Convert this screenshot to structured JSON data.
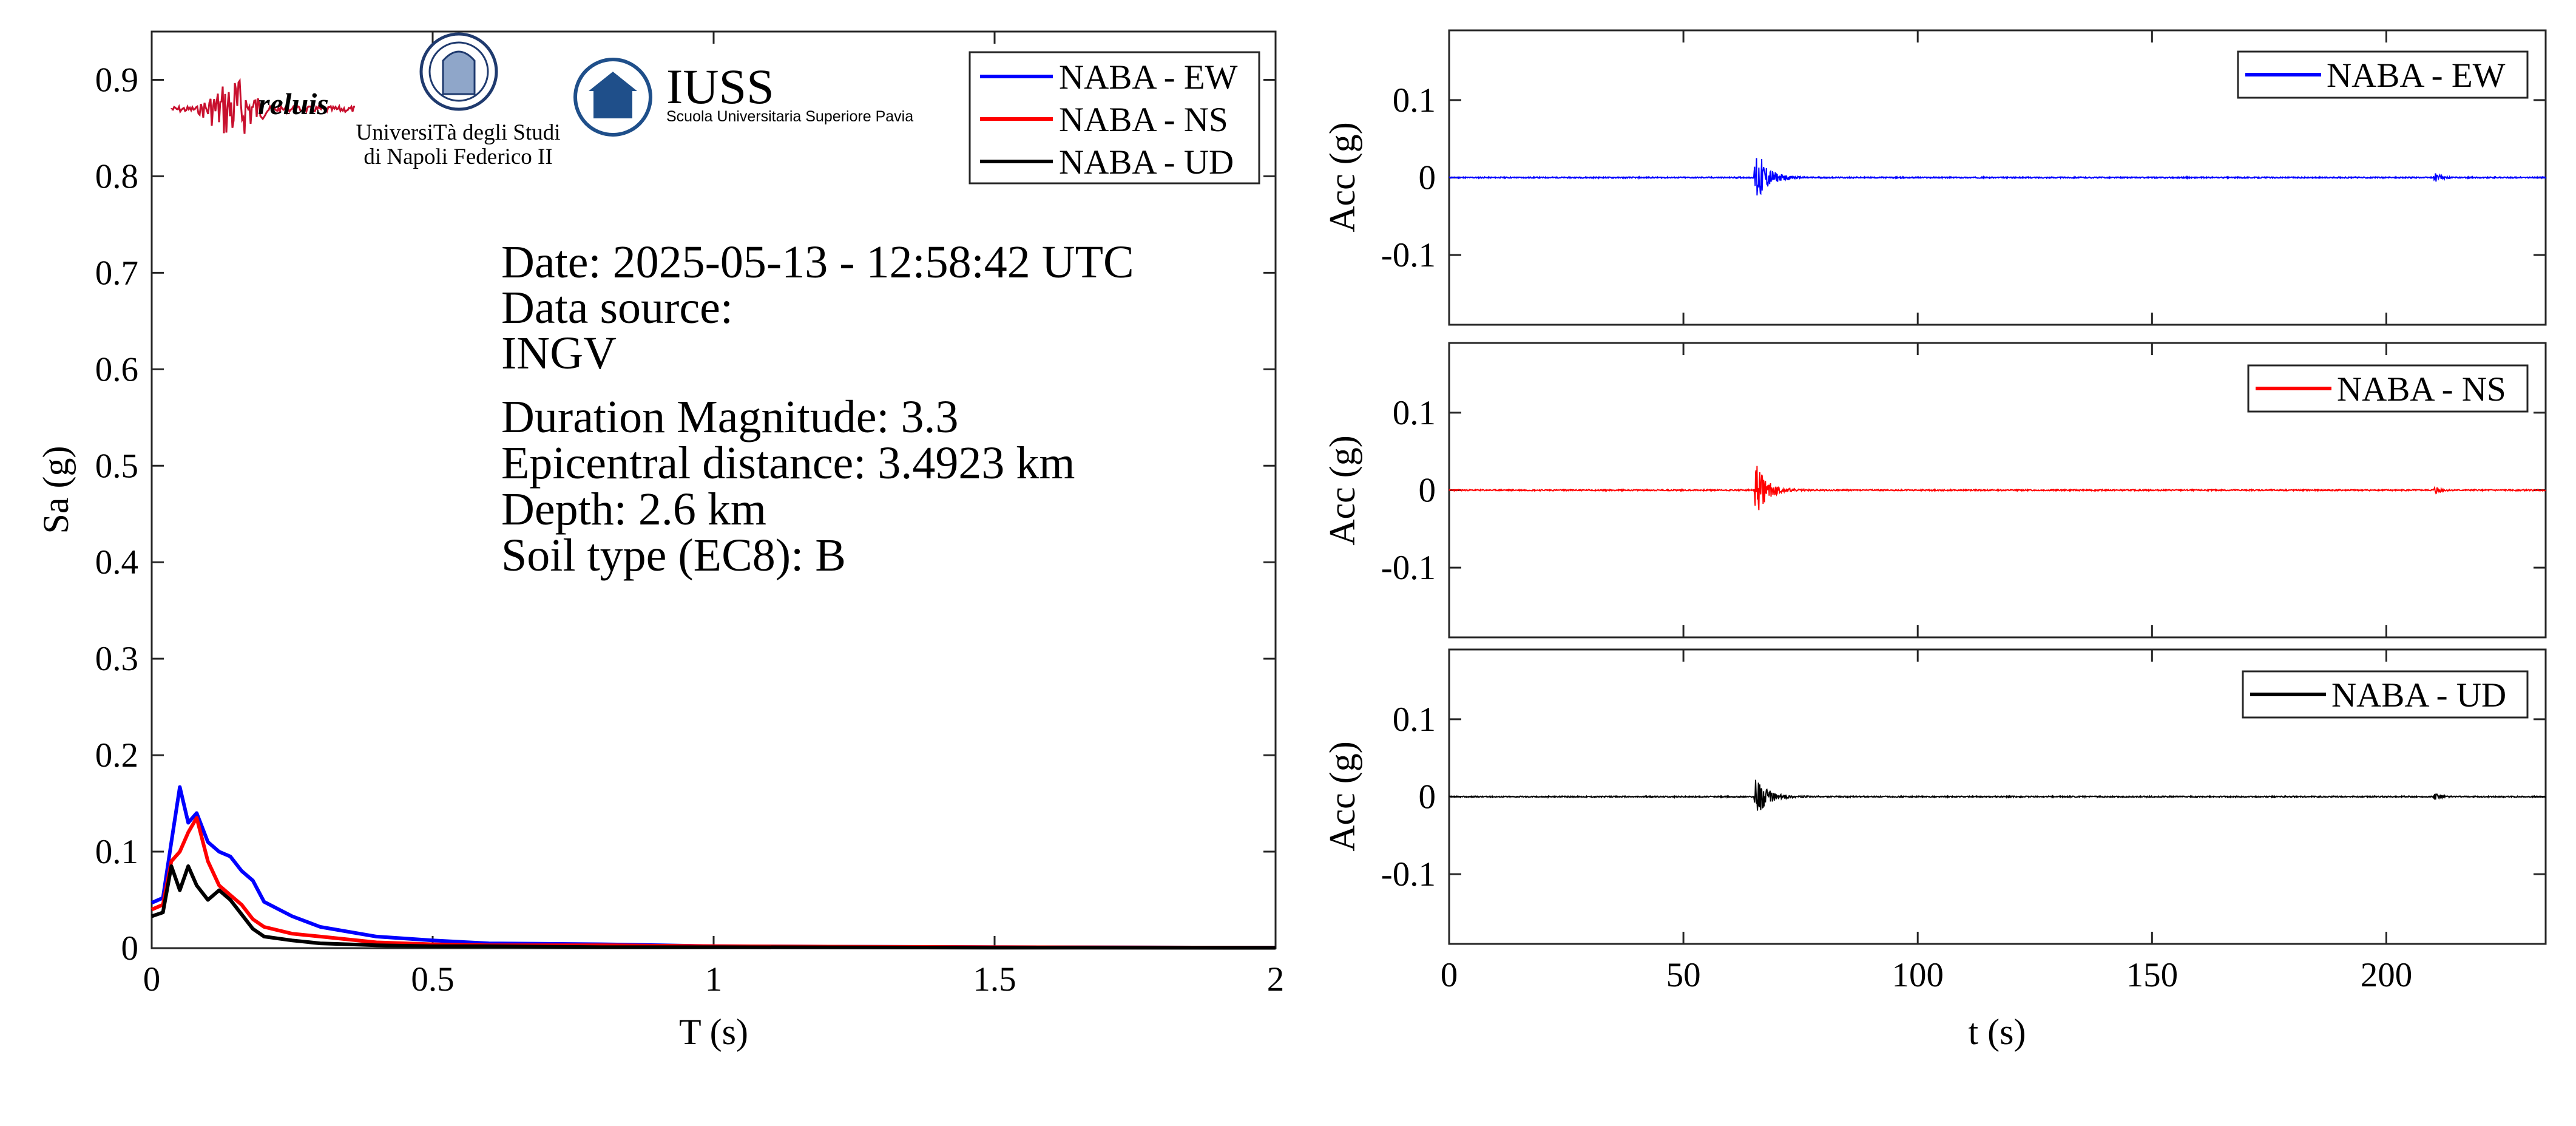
{
  "colors": {
    "EW": "#0000ff",
    "NS": "#ff0000",
    "UD": "#000000"
  },
  "logos": [
    {
      "name": "reluis",
      "text": "reluis"
    },
    {
      "name": "unina",
      "line1": "UniversiTà degli Studi",
      "line2": "di Napoli Federico II"
    },
    {
      "name": "iuss",
      "title": "IUSS",
      "subtitle": "Scuola Universitaria Superiore Pavia"
    }
  ],
  "info": {
    "date": "Date: 2025-05-13 - 12:58:42 UTC",
    "source_label": "Data source:",
    "source": "INGV",
    "magnitude": "Duration Magnitude: 3.3",
    "distance": "Epicentral distance: 3.4923 km",
    "depth": "Depth: 2.6 km",
    "soil": "Soil type (EC8): B"
  },
  "chart_data": [
    {
      "type": "line",
      "xlabel": "T (s)",
      "ylabel": "Sa (g)",
      "xlim": [
        0,
        2
      ],
      "ylim": [
        0,
        0.95
      ],
      "xticks": [
        0,
        0.5,
        1,
        1.5,
        2
      ],
      "xtick_labels": [
        "0",
        "0.5",
        "1",
        "1.5",
        "2"
      ],
      "yticks": [
        0,
        0.1,
        0.2,
        0.3,
        0.4,
        0.5,
        0.6,
        0.7,
        0.8,
        0.9
      ],
      "ytick_labels": [
        "0",
        "0.1",
        "0.2",
        "0.3",
        "0.4",
        "0.5",
        "0.6",
        "0.7",
        "0.8",
        "0.9"
      ],
      "legend_position": "top-right",
      "x": [
        0,
        0.02,
        0.035,
        0.05,
        0.065,
        0.08,
        0.1,
        0.12,
        0.14,
        0.16,
        0.18,
        0.2,
        0.25,
        0.3,
        0.4,
        0.5,
        0.6,
        0.8,
        1.0,
        1.5,
        2.0
      ],
      "series": [
        {
          "name": "NABA - EW",
          "color": "#0000ff",
          "values": [
            0.047,
            0.052,
            0.11,
            0.167,
            0.13,
            0.14,
            0.11,
            0.1,
            0.095,
            0.08,
            0.07,
            0.048,
            0.033,
            0.022,
            0.012,
            0.008,
            0.005,
            0.004,
            0.002,
            0.001,
            0.0005
          ]
        },
        {
          "name": "NABA - NS",
          "color": "#ff0000",
          "values": [
            0.04,
            0.045,
            0.09,
            0.1,
            0.12,
            0.135,
            0.09,
            0.065,
            0.055,
            0.045,
            0.03,
            0.022,
            0.015,
            0.012,
            0.006,
            0.004,
            0.003,
            0.003,
            0.002,
            0.001,
            0.0005
          ]
        },
        {
          "name": "NABA - UD",
          "color": "#000000",
          "values": [
            0.033,
            0.037,
            0.085,
            0.06,
            0.085,
            0.065,
            0.05,
            0.06,
            0.05,
            0.035,
            0.02,
            0.012,
            0.008,
            0.005,
            0.003,
            0.002,
            0.002,
            0.001,
            0.001,
            0.0005,
            0.0003
          ]
        }
      ]
    },
    {
      "type": "line",
      "xlabel": "",
      "ylabel": "Acc (g)",
      "xlim": [
        0,
        234
      ],
      "ylim": [
        -0.19,
        0.19
      ],
      "yticks": [
        -0.1,
        0,
        0.1
      ],
      "ytick_labels": [
        "-0.1",
        "0",
        "0.1"
      ],
      "legend_position": "top-right",
      "series": [
        {
          "name": "NABA - EW",
          "color": "#0000ff",
          "events": [
            {
              "t": 65.5,
              "peak": 0.04
            },
            {
              "t": 210.5,
              "peak": 0.008
            }
          ]
        }
      ]
    },
    {
      "type": "line",
      "xlabel": "",
      "ylabel": "Acc (g)",
      "xlim": [
        0,
        234
      ],
      "ylim": [
        -0.19,
        0.19
      ],
      "yticks": [
        -0.1,
        0,
        0.1
      ],
      "ytick_labels": [
        "-0.1",
        "0",
        "0.1"
      ],
      "legend_position": "top-right",
      "series": [
        {
          "name": "NABA - NS",
          "color": "#ff0000",
          "events": [
            {
              "t": 65.5,
              "peak": 0.035
            },
            {
              "t": 210.5,
              "peak": 0.006
            }
          ]
        }
      ]
    },
    {
      "type": "line",
      "xlabel": "t (s)",
      "ylabel": "Acc (g)",
      "xlim": [
        0,
        234
      ],
      "ylim": [
        -0.19,
        0.19
      ],
      "xticks": [
        0,
        50,
        100,
        150,
        200
      ],
      "xtick_labels": [
        "0",
        "50",
        "100",
        "150",
        "200"
      ],
      "yticks": [
        -0.1,
        0,
        0.1
      ],
      "ytick_labels": [
        "-0.1",
        "0",
        "0.1"
      ],
      "legend_position": "top-right",
      "series": [
        {
          "name": "NABA - UD",
          "color": "#000000",
          "events": [
            {
              "t": 65.5,
              "peak": 0.028
            },
            {
              "t": 210.5,
              "peak": 0.006
            }
          ]
        }
      ]
    }
  ]
}
